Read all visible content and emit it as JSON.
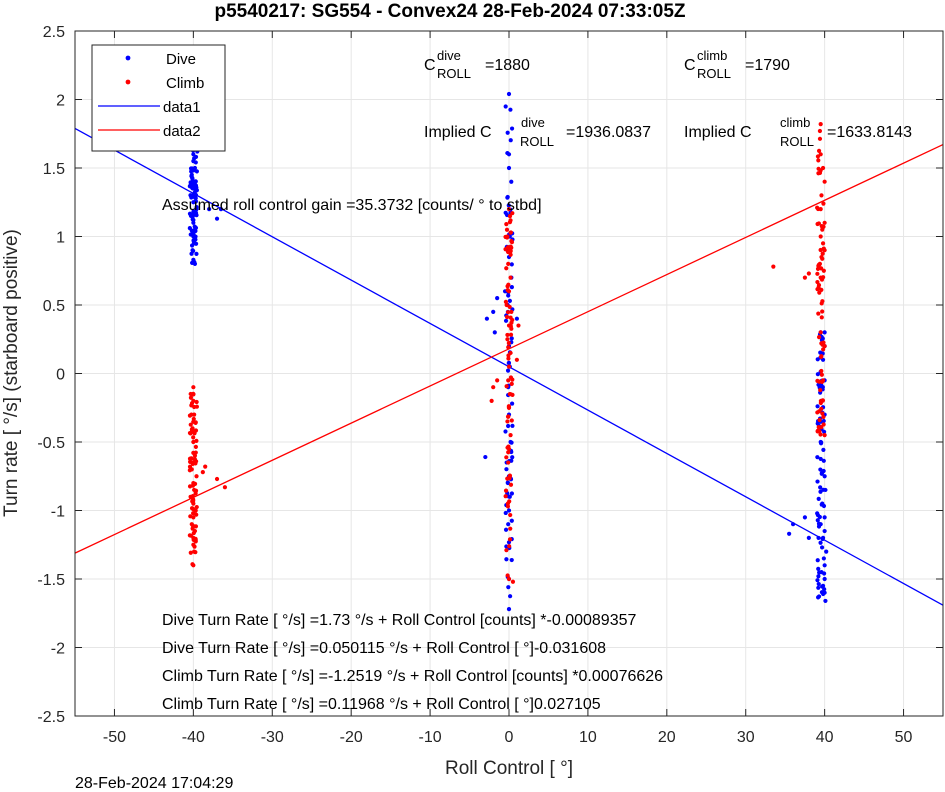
{
  "chart_data": {
    "type": "scatter",
    "title": "p5540217: SG554 - Convex24 28-Feb-2024 07:33:05Z",
    "xlabel": "Roll Control [   °]",
    "ylabel": "Turn rate [   °/s] (starboard positive)",
    "xlim": [
      -55,
      55
    ],
    "ylim": [
      -2.5,
      2.5
    ],
    "xticks": [
      -50,
      -40,
      -30,
      -20,
      -10,
      0,
      10,
      20,
      30,
      40,
      50
    ],
    "yticks": [
      -2.5,
      -2,
      -1.5,
      -1,
      -0.5,
      0,
      0.5,
      1,
      1.5,
      2,
      2.5
    ],
    "grid": true,
    "legend_placement": "top-left",
    "legend": [
      {
        "name": "Dive",
        "kind": "points",
        "color": "#0000ff"
      },
      {
        "name": "Climb",
        "kind": "points",
        "color": "#ff0000"
      },
      {
        "name": "data1",
        "kind": "line",
        "color": "#0000ff"
      },
      {
        "name": "data2",
        "kind": "line",
        "color": "#ff0000"
      }
    ],
    "series": [
      {
        "name": "Dive",
        "type": "scatter",
        "color": "#0000ff",
        "clusters": [
          {
            "x": -40,
            "y_min": 0.8,
            "y_max": 1.65
          },
          {
            "x": 0,
            "y_min": -1.72,
            "y_max": 2.04
          },
          {
            "x": 39.5,
            "y_min": -1.66,
            "y_max": 0.3
          }
        ],
        "points": [
          [
            -40,
            1.6
          ],
          [
            -40,
            1.55
          ],
          [
            -39.8,
            1.5
          ],
          [
            -40.2,
            1.45
          ],
          [
            -39.9,
            1.4
          ],
          [
            -40,
            1.35
          ],
          [
            -40.1,
            1.3
          ],
          [
            -39.7,
            1.28
          ],
          [
            -40,
            1.25
          ],
          [
            -39.6,
            1.2
          ],
          [
            -40.3,
            1.15
          ],
          [
            -40,
            1.1
          ],
          [
            -39.8,
            1.05
          ],
          [
            -40,
            1.0
          ],
          [
            -39.9,
            0.95
          ],
          [
            -40.1,
            0.9
          ],
          [
            -40,
            0.83
          ],
          [
            -39.8,
            0.8
          ],
          [
            -38,
            1.2
          ],
          [
            -37,
            1.13
          ],
          [
            -36.5,
            1.2
          ],
          [
            -39.5,
            1.62
          ],
          [
            0,
            2.04
          ],
          [
            0,
            1.6
          ],
          [
            0,
            1.5
          ],
          [
            0.1,
            1.0
          ],
          [
            -0.2,
            0.9
          ],
          [
            0,
            0.85
          ],
          [
            -1.5,
            0.55
          ],
          [
            -2,
            0.45
          ],
          [
            -1.8,
            0.3
          ],
          [
            -2.8,
            0.4
          ],
          [
            -0.5,
            0.6
          ],
          [
            0.3,
            0.7
          ],
          [
            0,
            0.2
          ],
          [
            0.1,
            0.05
          ],
          [
            -0.1,
            -0.1
          ],
          [
            0,
            -0.3
          ],
          [
            0.2,
            -0.5
          ],
          [
            -0.3,
            -0.65
          ],
          [
            0,
            -0.75
          ],
          [
            0.1,
            -0.9
          ],
          [
            0,
            -1.0
          ],
          [
            -0.1,
            -1.1
          ],
          [
            0,
            -1.5
          ],
          [
            0,
            -1.72
          ],
          [
            -3,
            -0.61
          ],
          [
            1,
            0.4
          ],
          [
            39.5,
            0.3
          ],
          [
            40,
            0.3
          ],
          [
            40,
            0.2
          ],
          [
            39.8,
            0.1
          ],
          [
            40,
            -0.05
          ],
          [
            39.6,
            -0.2
          ],
          [
            40,
            -0.3
          ],
          [
            39.5,
            -0.5
          ],
          [
            40,
            -0.75
          ],
          [
            40.1,
            -0.85
          ],
          [
            39.7,
            -0.95
          ],
          [
            40,
            -1.05
          ],
          [
            39.5,
            -1.1
          ],
          [
            40,
            -1.15
          ],
          [
            39.8,
            -1.2
          ],
          [
            40.2,
            -1.3
          ],
          [
            39.9,
            -1.35
          ],
          [
            40,
            -1.4
          ],
          [
            39.6,
            -1.45
          ],
          [
            40,
            -1.5
          ],
          [
            39.8,
            -1.55
          ],
          [
            40,
            -1.6
          ],
          [
            40.1,
            -1.66
          ],
          [
            36,
            -1.1
          ],
          [
            35.5,
            -1.17
          ],
          [
            37.5,
            -1.05
          ],
          [
            38,
            -1.2
          ]
        ]
      },
      {
        "name": "Climb",
        "type": "scatter",
        "color": "#ff0000",
        "clusters": [
          {
            "x": -40,
            "y_min": -1.4,
            "y_max": -0.1
          },
          {
            "x": 0,
            "y_min": -1.5,
            "y_max": 1.2
          },
          {
            "x": 39.5,
            "y_min": -0.45,
            "y_max": 1.82
          }
        ],
        "points": [
          [
            -40,
            -0.1
          ],
          [
            -40,
            -0.2
          ],
          [
            -39.9,
            -0.3
          ],
          [
            -40.1,
            -0.4
          ],
          [
            -40,
            -0.5
          ],
          [
            -39.8,
            -0.6
          ],
          [
            -40,
            -0.65
          ],
          [
            -40.2,
            -0.7
          ],
          [
            -39.6,
            -0.75
          ],
          [
            -40,
            -0.8
          ],
          [
            -39.9,
            -0.85
          ],
          [
            -40.1,
            -0.9
          ],
          [
            -40,
            -0.95
          ],
          [
            -39.7,
            -1.0
          ],
          [
            -40,
            -1.05
          ],
          [
            -40.2,
            -1.1
          ],
          [
            -39.8,
            -1.15
          ],
          [
            -40,
            -1.2
          ],
          [
            -40,
            -1.25
          ],
          [
            -39.9,
            -1.3
          ],
          [
            -40,
            -1.4
          ],
          [
            -38.5,
            -0.68
          ],
          [
            -37,
            -0.77
          ],
          [
            -36,
            -0.83
          ],
          [
            -38.8,
            -0.72
          ],
          [
            0,
            1.2
          ],
          [
            -0.2,
            1.0
          ],
          [
            0.1,
            0.9
          ],
          [
            -0.1,
            0.8
          ],
          [
            0.2,
            0.7
          ],
          [
            0,
            0.6
          ],
          [
            -0.3,
            0.5
          ],
          [
            0.3,
            0.45
          ],
          [
            0,
            0.35
          ],
          [
            -0.2,
            0.25
          ],
          [
            0.2,
            0.15
          ],
          [
            0,
            0.05
          ],
          [
            -0.1,
            -0.05
          ],
          [
            0.1,
            -0.15
          ],
          [
            -2,
            -0.1
          ],
          [
            -1.5,
            -0.05
          ],
          [
            -2.2,
            -0.2
          ],
          [
            1.2,
            0.35
          ],
          [
            1,
            0.1
          ],
          [
            0,
            -0.25
          ],
          [
            -0.2,
            -0.35
          ],
          [
            0.2,
            -0.45
          ],
          [
            0,
            -0.55
          ],
          [
            -0.1,
            -0.65
          ],
          [
            0.1,
            -0.75
          ],
          [
            0,
            -1.5
          ],
          [
            0.5,
            -1.52
          ],
          [
            39.5,
            1.82
          ],
          [
            39.5,
            1.6
          ],
          [
            39.8,
            1.5
          ],
          [
            40,
            1.4
          ],
          [
            39.6,
            1.3
          ],
          [
            39.5,
            1.2
          ],
          [
            40,
            1.1
          ],
          [
            39.7,
            1.05
          ],
          [
            39.5,
            1.0
          ],
          [
            39.8,
            0.95
          ],
          [
            40,
            0.9
          ],
          [
            39.6,
            0.85
          ],
          [
            39.4,
            0.8
          ],
          [
            39.9,
            0.75
          ],
          [
            39.5,
            0.7
          ],
          [
            38,
            0.73
          ],
          [
            37.5,
            0.7
          ],
          [
            33.5,
            0.78
          ],
          [
            39.5,
            0.3
          ],
          [
            40,
            0.2
          ],
          [
            39.8,
            -0.05
          ],
          [
            40,
            -0.45
          ]
        ]
      },
      {
        "name": "data1",
        "type": "line",
        "color": "#0000ff",
        "x": [
          -55,
          55
        ],
        "y": [
          1.789,
          -1.691
        ]
      },
      {
        "name": "data2",
        "type": "line",
        "color": "#ff0000",
        "x": [
          -55,
          55
        ],
        "y": [
          -1.311,
          1.671
        ]
      }
    ],
    "annotations": {
      "c_dive": {
        "base": "C",
        "sup": "dive",
        "sub": "ROLL",
        "value": "=1880"
      },
      "c_climb": {
        "base": "C",
        "sup": "climb",
        "sub": "ROLL",
        "value": "=1790"
      },
      "implied_dive": {
        "prefix": "Implied C",
        "sup": "dive",
        "sub": "ROLL",
        "value": "=1936.0837"
      },
      "implied_climb": {
        "prefix": "Implied C",
        "sup": "climb",
        "sub": "ROLL",
        "value": "=1633.8143"
      },
      "gain": "Assumed roll control gain =35.3732 [counts/           ° to stbd]",
      "fit_lines": [
        "Dive Turn Rate [    °/s] =1.73    °/s + Roll Control [counts] *-0.00089357",
        "Dive Turn Rate [    °/s] =0.050115     °/s + Roll Control [     °]-0.031608",
        "Climb Turn Rate [    °/s] =-1.2519     °/s + Roll Control [counts] *0.00076626",
        "Climb Turn Rate [    °/s] =0.11968     °/s + Roll Control [     °]0.027105"
      ]
    }
  },
  "footer": {
    "timestamp": "28-Feb-2024 17:04:29"
  }
}
